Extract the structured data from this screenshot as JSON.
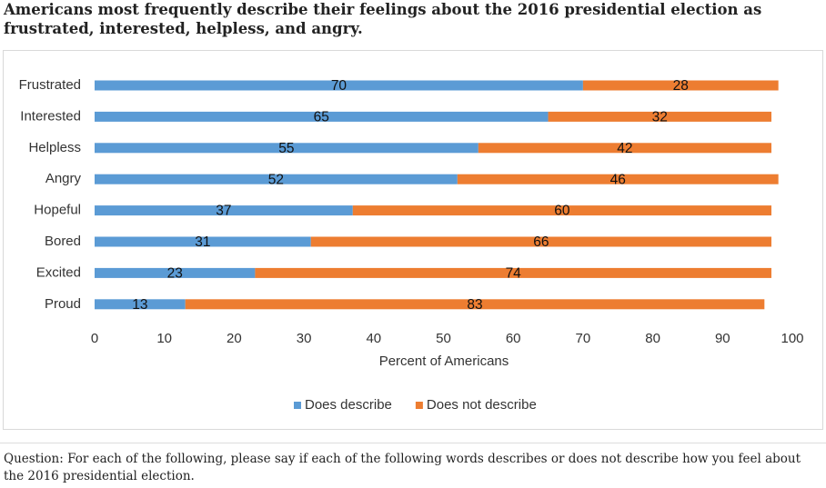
{
  "chart_data": {
    "type": "bar",
    "title": "Americans most frequently describe their feelings about the 2016 presidential election as frustrated, interested, helpless, and angry.",
    "categories": [
      "Frustrated",
      "Interested",
      "Helpless",
      "Angry",
      "Hopeful",
      "Bored",
      "Excited",
      "Proud"
    ],
    "series": [
      {
        "name": "Does describe",
        "color": "#5b9bd5",
        "values": [
          70,
          65,
          55,
          52,
          37,
          31,
          23,
          13
        ]
      },
      {
        "name": "Does not describe",
        "color": "#ed7d31",
        "values": [
          28,
          32,
          42,
          46,
          60,
          66,
          74,
          83
        ]
      }
    ],
    "xlim": [
      0,
      100
    ],
    "xticks": [
      0,
      10,
      20,
      30,
      40,
      50,
      60,
      70,
      80,
      90,
      100
    ],
    "xlabel": "Percent of Americans",
    "legend": "bottom",
    "note": "Question: For each of the following, please say if each of the following words describes or does not describe how you feel about the 2016 presidential election."
  }
}
